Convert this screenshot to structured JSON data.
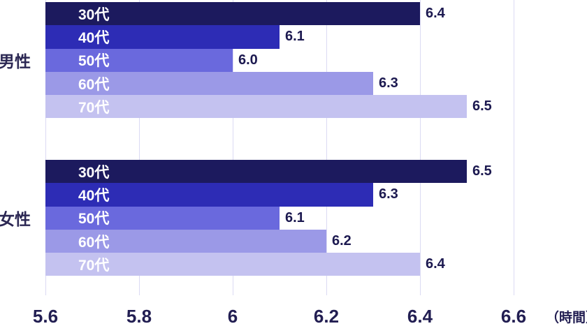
{
  "chart_data": {
    "type": "bar",
    "orientation": "horizontal",
    "title": "",
    "xlabel": "",
    "ylabel": "",
    "unit_label": "（時間）",
    "xlim": [
      5.6,
      6.6
    ],
    "x_ticks": [
      "5.6",
      "5.8",
      "6",
      "6.2",
      "6.4",
      "6.6"
    ],
    "x_tick_values": [
      5.6,
      5.8,
      6.0,
      6.2,
      6.4,
      6.6
    ],
    "grid": true,
    "categories": [
      "30代",
      "40代",
      "50代",
      "60代",
      "70代"
    ],
    "bar_colors": [
      "#1c1a5e",
      "#2d2cb5",
      "#6a69dd",
      "#9b99e7",
      "#c4c2f0"
    ],
    "groups": [
      {
        "label": "男性",
        "values": [
          6.4,
          6.1,
          6.0,
          6.3,
          6.5
        ],
        "value_labels": [
          "6.4",
          "6.1",
          "6.0",
          "6.3",
          "6.5"
        ]
      },
      {
        "label": "女性",
        "values": [
          6.5,
          6.3,
          6.1,
          6.2,
          6.4
        ],
        "value_labels": [
          "6.5",
          "6.3",
          "6.1",
          "6.2",
          "6.4"
        ]
      }
    ],
    "colors": {
      "gridline": "#dbdaf3",
      "tick_text": "#221e52",
      "value_text": "#1c1950",
      "category_text": "#ffffff",
      "group_text": "#2b2753",
      "background": "#ffffff"
    }
  }
}
